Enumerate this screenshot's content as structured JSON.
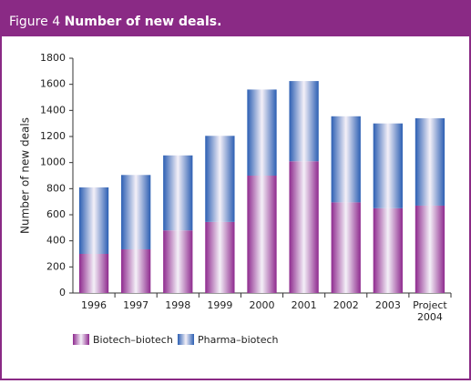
{
  "chart_data": {
    "type": "stacked-bar",
    "figure_label": "Figure 4",
    "title": "Number of new deals.",
    "y_label": "Number of new deals",
    "categories": [
      "1996",
      "1997",
      "1998",
      "1999",
      "2000",
      "2001",
      "2002",
      "2003",
      "Project 2004"
    ],
    "series": [
      {
        "name": "Biotech–biotech",
        "color": "#8e2a8e",
        "values": [
          300,
          335,
          480,
          545,
          900,
          1010,
          695,
          650,
          670
        ]
      },
      {
        "name": "Pharma–biotech",
        "color": "#2c5fb3",
        "values": [
          510,
          570,
          575,
          660,
          660,
          615,
          660,
          650,
          670
        ]
      }
    ],
    "ylim": [
      0,
      1800
    ],
    "yticks": [
      0,
      200,
      400,
      600,
      800,
      1000,
      1200,
      1400,
      1600,
      1800
    ],
    "grid": false
  }
}
